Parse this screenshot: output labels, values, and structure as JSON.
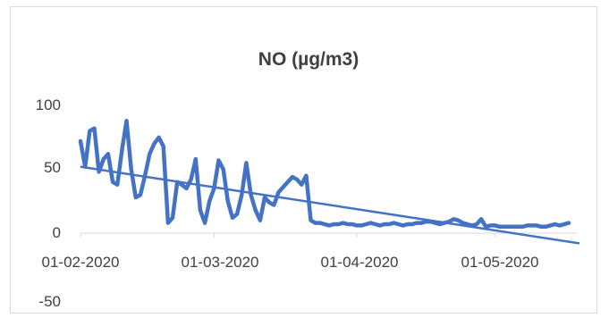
{
  "chart_data": {
    "type": "line",
    "title": "NO (µg/m3)",
    "xlabel": "",
    "ylabel": "",
    "ylim": [
      -50,
      100
    ],
    "y_ticks": [
      "100",
      "50",
      "0",
      "-50"
    ],
    "x_tick_labels": [
      "01-02-2020",
      "01-03-2020",
      "01-04-2020",
      "01-05-2020"
    ],
    "x_range": [
      "2020-02-01",
      "2020-05-17"
    ],
    "grid": false,
    "legend": "none",
    "series": [
      {
        "color": "#4472c4",
        "x": [
          "2020-02-01",
          "2020-02-02",
          "2020-02-03",
          "2020-02-04",
          "2020-02-05",
          "2020-02-06",
          "2020-02-07",
          "2020-02-08",
          "2020-02-09",
          "2020-02-10",
          "2020-02-11",
          "2020-02-12",
          "2020-02-13",
          "2020-02-14",
          "2020-02-15",
          "2020-02-16",
          "2020-02-17",
          "2020-02-18",
          "2020-02-19",
          "2020-02-20",
          "2020-02-21",
          "2020-02-22",
          "2020-02-23",
          "2020-02-24",
          "2020-02-25",
          "2020-02-26",
          "2020-02-27",
          "2020-02-28",
          "2020-02-29",
          "2020-03-01",
          "2020-03-02",
          "2020-03-03",
          "2020-03-04",
          "2020-03-05",
          "2020-03-06",
          "2020-03-07",
          "2020-03-08",
          "2020-03-09",
          "2020-03-10",
          "2020-03-11",
          "2020-03-12",
          "2020-03-13",
          "2020-03-14",
          "2020-03-15",
          "2020-03-16",
          "2020-03-17",
          "2020-03-18",
          "2020-03-19",
          "2020-03-20",
          "2020-03-21",
          "2020-03-22",
          "2020-03-23",
          "2020-03-24",
          "2020-03-25",
          "2020-03-26",
          "2020-03-27",
          "2020-03-28",
          "2020-03-29",
          "2020-03-30",
          "2020-03-31",
          "2020-04-01",
          "2020-04-02",
          "2020-04-03",
          "2020-04-04",
          "2020-04-05",
          "2020-04-06",
          "2020-04-07",
          "2020-04-08",
          "2020-04-09",
          "2020-04-10",
          "2020-04-11",
          "2020-04-12",
          "2020-04-13",
          "2020-04-14",
          "2020-04-15",
          "2020-04-16",
          "2020-04-17",
          "2020-04-18",
          "2020-04-19",
          "2020-04-20",
          "2020-04-21",
          "2020-04-22",
          "2020-04-23",
          "2020-04-24",
          "2020-04-25",
          "2020-04-26",
          "2020-04-27",
          "2020-04-28",
          "2020-04-29",
          "2020-04-30",
          "2020-05-01",
          "2020-05-02",
          "2020-05-03",
          "2020-05-04",
          "2020-05-05",
          "2020-05-06",
          "2020-05-07",
          "2020-05-08",
          "2020-05-09",
          "2020-05-10",
          "2020-05-11",
          "2020-05-12",
          "2020-05-13",
          "2020-05-14",
          "2020-05-15",
          "2020-05-16",
          "2020-05-17"
        ],
        "values": [
          72,
          52,
          80,
          82,
          48,
          58,
          62,
          40,
          38,
          65,
          88,
          50,
          28,
          30,
          45,
          62,
          70,
          75,
          68,
          8,
          12,
          40,
          38,
          35,
          42,
          58,
          18,
          8,
          25,
          35,
          57,
          50,
          25,
          12,
          15,
          30,
          55,
          30,
          18,
          10,
          28,
          24,
          22,
          32,
          36,
          40,
          44,
          42,
          38,
          45,
          10,
          8,
          8,
          7,
          6,
          7,
          7,
          8,
          7,
          7,
          6,
          6,
          7,
          8,
          7,
          6,
          7,
          7,
          8,
          7,
          6,
          7,
          7,
          8,
          8,
          9,
          9,
          8,
          7,
          8,
          9,
          11,
          10,
          8,
          7,
          6,
          7,
          11,
          5,
          6,
          6,
          5,
          5,
          5,
          5,
          5,
          5,
          6,
          6,
          6,
          5,
          5,
          6,
          7,
          6,
          7,
          8
        ]
      }
    ],
    "trendline": {
      "start_value": 52,
      "end_value": -8
    }
  }
}
